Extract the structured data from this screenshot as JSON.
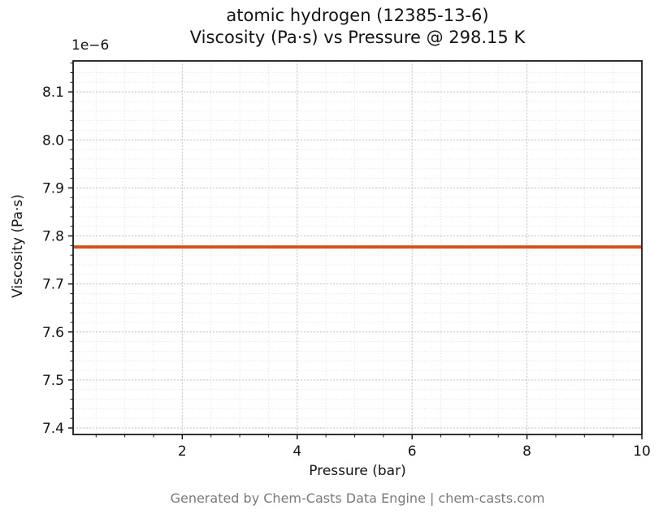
{
  "footer": "Generated by Chem-Casts Data Engine | chem-casts.com",
  "chart_data": {
    "type": "line",
    "title_line1": "atomic hydrogen (12385-13-6)",
    "title_line2": "Viscosity (Pa·s) vs Pressure @ 298.15 K",
    "xlabel": "Pressure (bar)",
    "ylabel": "Viscosity (Pa·s)",
    "y_offset_text": "1e−6",
    "y_multiplier": 1e-06,
    "xlim": [
      0.1,
      10
    ],
    "ylim": [
      7.3865,
      8.1645
    ],
    "xtick_values": [
      2,
      4,
      6,
      8,
      10
    ],
    "xtick_labels": [
      "2",
      "4",
      "6",
      "8",
      "10"
    ],
    "ytick_values": [
      7.4,
      7.5,
      7.6,
      7.7,
      7.8,
      7.9,
      8.0,
      8.1
    ],
    "ytick_labels": [
      "7.4",
      "7.5",
      "7.6",
      "7.7",
      "7.8",
      "7.9",
      "8.0",
      "8.1"
    ],
    "x_minor_step": 0.5,
    "y_minor_step": 0.02,
    "grid": "major and minor, light gray dotted",
    "legend": false,
    "series": [
      {
        "name": "viscosity",
        "color": "#d2531e",
        "linewidth": 4,
        "x": [
          0.1,
          10
        ],
        "y": [
          7.777,
          7.777
        ],
        "note": "constant viscosity ~7.777e-6 Pa·s across 0.1–10 bar at 298.15 K"
      }
    ]
  }
}
